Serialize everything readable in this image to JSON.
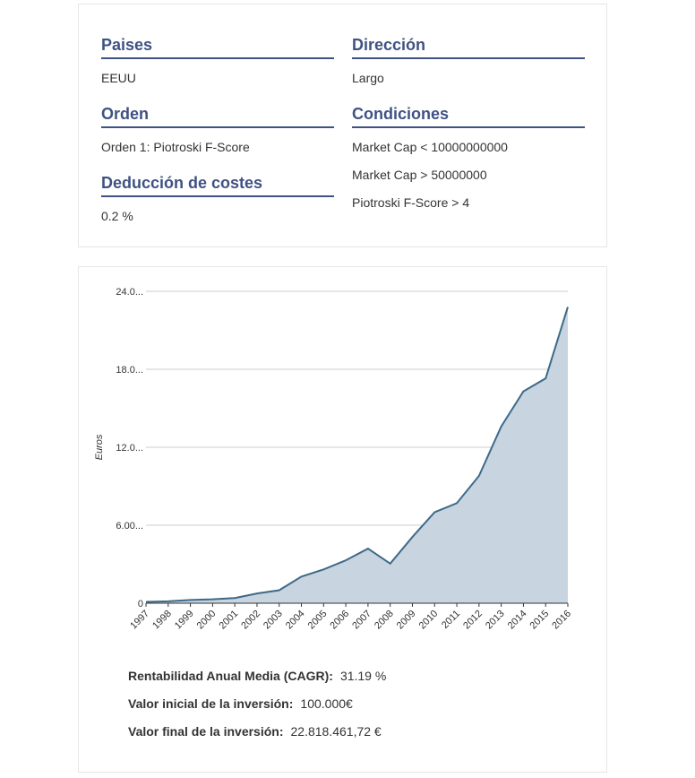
{
  "params": {
    "paises": {
      "title": "Paises",
      "value": "EEUU"
    },
    "direccion": {
      "title": "Dirección",
      "value": "Largo"
    },
    "orden": {
      "title": "Orden",
      "value": "Orden 1: Piotroski F-Score"
    },
    "condiciones": {
      "title": "Condiciones",
      "values": [
        "Market Cap < 10000000000",
        "Market Cap > 50000000",
        "Piotroski F-Score > 4"
      ]
    },
    "costes": {
      "title": "Deducción de costes",
      "value": "0.2 %"
    }
  },
  "chart_data": {
    "type": "area",
    "title": "",
    "xlabel": "",
    "ylabel": "Euros",
    "ylim": [
      0,
      24
    ],
    "yticks": [
      0,
      6,
      12,
      18,
      24
    ],
    "ytick_labels": [
      "0",
      "6.00...",
      "12.0...",
      "18.0...",
      "24.0..."
    ],
    "grid": true,
    "line_color": "#3d6a8a",
    "fill_color": "#c8d4df",
    "x": [
      "1997",
      "1998",
      "1999",
      "2000",
      "2001",
      "2002",
      "2003",
      "2004",
      "2005",
      "2006",
      "2007",
      "2008",
      "2009",
      "2010",
      "2011",
      "2012",
      "2013",
      "2014",
      "2015",
      "2016"
    ],
    "values": [
      0.1,
      0.15,
      0.25,
      0.3,
      0.4,
      0.75,
      1.0,
      2.05,
      2.6,
      3.3,
      4.2,
      3.05,
      5.1,
      7.0,
      7.7,
      9.8,
      13.6,
      16.3,
      17.3,
      22.8
    ]
  },
  "stats": {
    "cagr": {
      "label": "Rentabilidad Anual Media (CAGR):",
      "value": "31.19 %"
    },
    "initial": {
      "label": "Valor inicial de la inversión:",
      "value": "100.000€"
    },
    "final": {
      "label": "Valor final de la inversión:",
      "value": "22.818.461,72 €"
    }
  }
}
